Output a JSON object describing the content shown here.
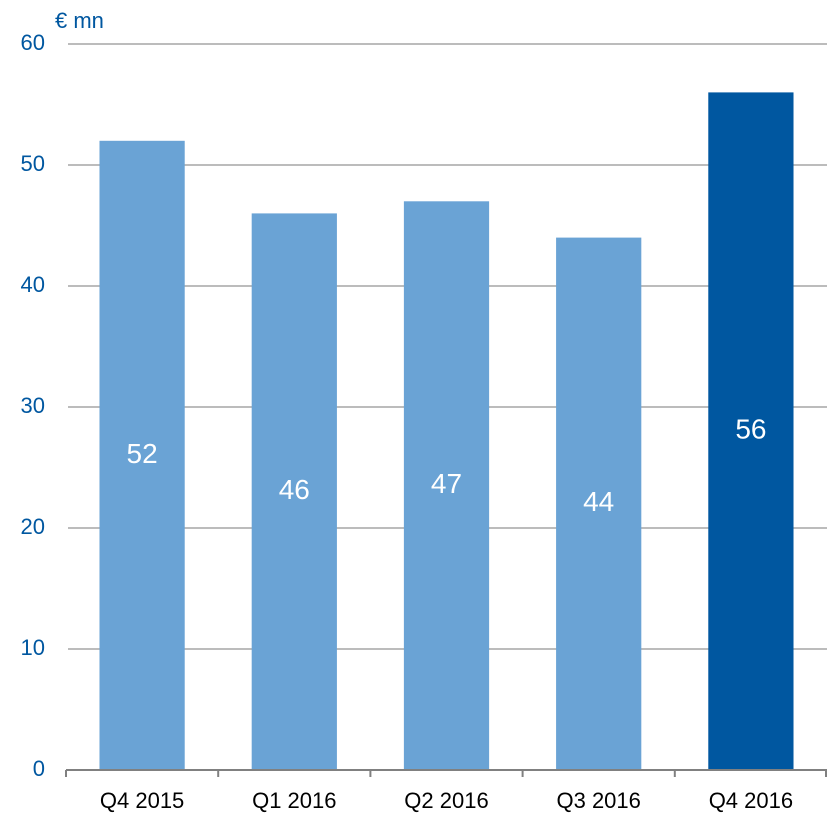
{
  "chart_data": {
    "type": "bar",
    "y_label": "€ mn",
    "categories": [
      "Q4 2015",
      "Q1 2016",
      "Q2 2016",
      "Q3 2016",
      "Q4 2016"
    ],
    "values": [
      52,
      46,
      47,
      44,
      56
    ],
    "colors": [
      "#6aa3d5",
      "#6aa3d5",
      "#6aa3d5",
      "#6aa3d5",
      "#0057a0"
    ],
    "ylim": [
      0,
      60
    ],
    "yticks": [
      0,
      10,
      20,
      30,
      40,
      50,
      60
    ],
    "grid": true
  }
}
